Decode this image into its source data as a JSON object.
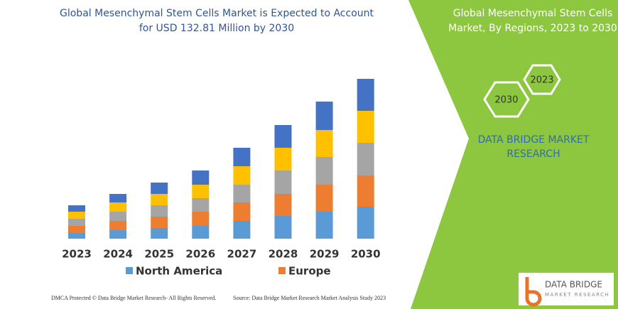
{
  "chart_data": {
    "type": "bar",
    "stacked": true,
    "title": [
      "Global Mesenchymal Stem Cells Market is Expected to Account",
      "for USD 132.81 Million by 2030"
    ],
    "categories": [
      "2023",
      "2024",
      "2025",
      "2026",
      "2027",
      "2028",
      "2029",
      "2030"
    ],
    "series": [
      {
        "name": "North America",
        "color": "#5b9bd5",
        "values": [
          8,
          12,
          15,
          18,
          25,
          32,
          38,
          45
        ]
      },
      {
        "name": "Europe",
        "color": "#ed7d31",
        "values": [
          10,
          13,
          16,
          20,
          26,
          31,
          38,
          44
        ]
      },
      {
        "color": "#a5a5a5",
        "values": [
          10,
          13,
          16,
          19,
          25,
          33,
          39,
          46
        ]
      },
      {
        "color": "#ffc000",
        "values": [
          10,
          13,
          16,
          19,
          26,
          32,
          38,
          45
        ]
      },
      {
        "color": "#4472c4",
        "values": [
          9,
          12,
          16,
          20,
          26,
          32,
          40,
          45
        ]
      }
    ]
  },
  "side_panel": {
    "title": [
      "Global Mesenchymal Stem Cells",
      "Market, By Regions, 2023 to 2030"
    ],
    "hexagons": [
      "2023",
      "2030"
    ],
    "brand": [
      "DATA BRIDGE MARKET",
      "RESEARCH"
    ]
  },
  "footer": {
    "left": "DMCA Protected © Data Bridge Market Research-  All Rights Reserved.",
    "right": "Source: Data Bridge Market Research  Market Analysis Study 2023"
  },
  "logo": {
    "name": "DATA BRIDGE",
    "tagline": "MARKET RESEARCH"
  }
}
